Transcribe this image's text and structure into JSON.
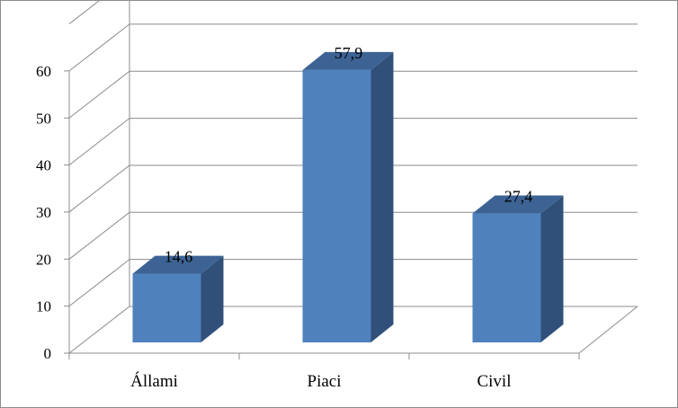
{
  "chart_data": {
    "type": "bar",
    "categories": [
      "Állami",
      "Piaci",
      "Civil"
    ],
    "values": [
      14.6,
      57.9,
      27.4
    ],
    "data_labels": [
      "14,6",
      "57,9",
      "27,4"
    ],
    "y_ticks": [
      "0",
      "10",
      "20",
      "30",
      "40",
      "50",
      "60"
    ],
    "ylim": [
      0,
      60
    ],
    "grid": true,
    "legend": "none",
    "style": "3d-column",
    "colors": {
      "bar_front": "#4f81bd",
      "bar_side": "#30507a",
      "bar_top": "#3c6394",
      "gridline": "#8c8c8c",
      "frame": "#8c8c8c"
    }
  }
}
